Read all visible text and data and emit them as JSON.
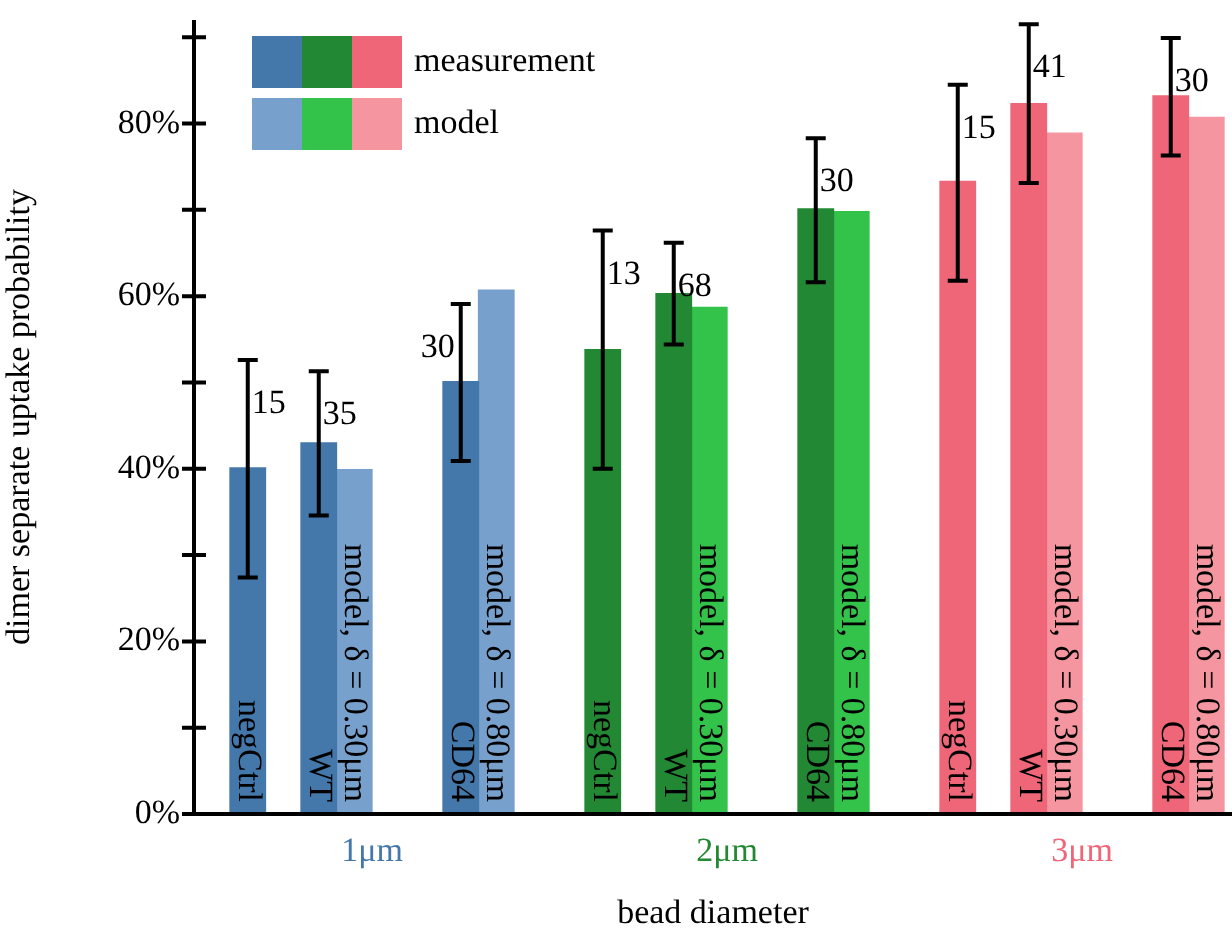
{
  "chart_data": {
    "type": "bar",
    "xlabel": "bead diameter",
    "ylabel": "dimer separate uptake probability",
    "categories": [
      "negCtrl",
      "WT",
      null,
      "CD64",
      null,
      "negCtrl",
      "WT",
      null,
      "CD64",
      null,
      "negCtrl",
      "WT",
      null,
      "CD64"
    ],
    "series": [
      {
        "name": "measurement",
        "colors": [
          "#4477aa",
          "#4477aa",
          "#4477aa",
          "#4477aa",
          "#228833",
          "#228833",
          "#228833",
          "#228833",
          "#228833",
          "#ee6677",
          "#ee6677",
          "#ee6677",
          "#ee6677",
          "#ee6677"
        ],
        "values": [
          40.1,
          43.0,
          null,
          50.1,
          null,
          53.8,
          60.3,
          null,
          70.1,
          null,
          73.3,
          82.3,
          null,
          83.2
        ],
        "errors": [
          [
            27.4,
            52.6
          ],
          [
            34.6,
            51.3
          ],
          null,
          [
            40.9,
            59.1
          ],
          null,
          [
            40.0,
            67.6
          ],
          [
            54.4,
            66.2
          ],
          null,
          [
            61.6,
            78.3
          ],
          null,
          [
            61.8,
            84.5
          ],
          [
            73.1,
            91.5
          ],
          null,
          [
            76.3,
            89.9
          ]
        ]
      },
      {
        "name": "model",
        "colors": [
          "#77a0cc",
          "#77a0cc",
          "#77a0cc",
          "#77a0cc",
          "#33c24a",
          "#33c24a",
          "#33c24a",
          "#33c24a",
          "#33c24a",
          "#f4959f",
          "#f4959f",
          "#f4959f",
          "#f4959f",
          "#f4959f"
        ],
        "values": [
          null,
          39.9,
          null,
          60.7,
          null,
          null,
          58.7,
          null,
          69.8,
          null,
          null,
          78.9,
          null,
          80.7
        ]
      }
    ],
    "annotations": [
      "15",
      "35",
      "30",
      "13",
      "68",
      "30",
      "15",
      "41",
      "30",
      "model, δ = 0.30μm",
      "model, δ = 0.80μm",
      "model, δ = 0.30μm",
      "model, δ = 0.80μm",
      "model, δ = 0.30μm",
      "model, δ = 0.80μm",
      "1μm",
      "2μm",
      "3μm"
    ],
    "ylim": [
      0,
      92
    ],
    "yticks": [
      {
        "value": 0,
        "label": "0%"
      },
      {
        "value": 10,
        "label": null
      },
      {
        "value": 20,
        "label": "20%"
      },
      {
        "value": 30,
        "label": null
      },
      {
        "value": 40,
        "label": "40%"
      },
      {
        "value": 50,
        "label": null
      },
      {
        "value": 60,
        "label": "60%"
      },
      {
        "value": 70,
        "label": null
      },
      {
        "value": 80,
        "label": "80%"
      },
      {
        "value": 90,
        "label": null
      }
    ],
    "grid": false,
    "legend": "top left"
  }
}
